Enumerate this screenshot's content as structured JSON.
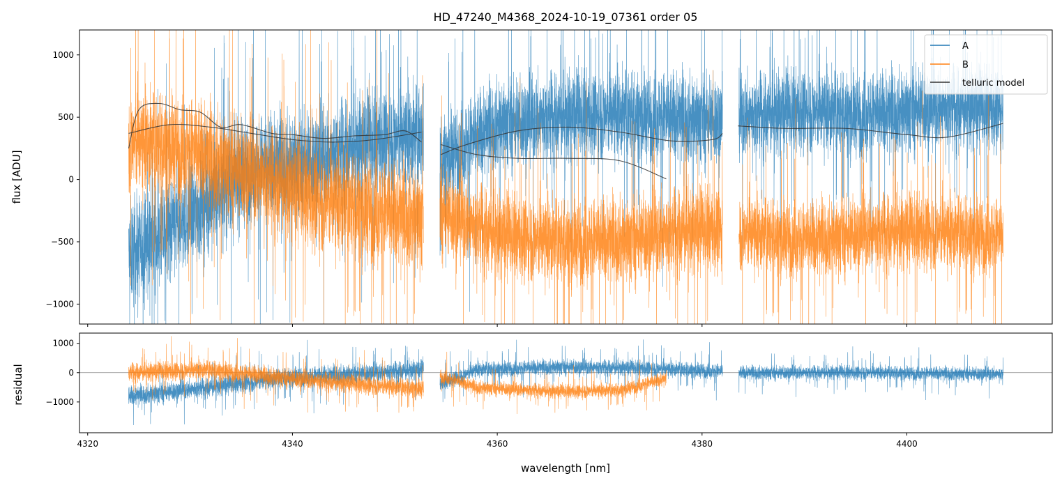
{
  "colors": {
    "A": "#1f77b4",
    "B": "#ff7f0e",
    "telluric": "#333333",
    "frame": "#000000",
    "zero_line": "#888888",
    "legend_border": "#cccccc"
  },
  "chart_data": [
    {
      "panel": "main",
      "type": "line",
      "title": "HD_47240_M4368_2024-10-19_07361  order 05",
      "xlabel": "",
      "ylabel": "flux [ADU]",
      "xlim": [
        4319.2,
        4414.2
      ],
      "ylim": [
        -1160,
        1200
      ],
      "xticks": [
        4320,
        4340,
        4360,
        4380,
        4400
      ],
      "yticks": [
        -1000,
        -500,
        0,
        500,
        1000
      ],
      "ytick_labels": [
        "−1000",
        "−500",
        "0",
        "500",
        "1000"
      ],
      "grid": false,
      "legend": {
        "position": "top-right",
        "entries": [
          "A",
          "B",
          "telluric model"
        ]
      },
      "series": [
        {
          "name": "A",
          "style": "noisy spectrum",
          "segments": [
            {
              "x_range": [
                4324.0,
                4352.8
              ],
              "center": [
                [
                  4324,
                  -600
                ],
                [
                  4330,
                  -300
                ],
                [
                  4336,
                  100
                ],
                [
                  4342,
                  150
                ],
                [
                  4348,
                  300
                ],
                [
                  4352.8,
                  350
                ]
              ],
              "spread": 520
            },
            {
              "x_range": [
                4354.4,
                4382.0
              ],
              "center": [
                [
                  4354.4,
                  150
                ],
                [
                  4360,
                  450
                ],
                [
                  4366,
                  500
                ],
                [
                  4372,
                  520
                ],
                [
                  4378,
                  500
                ],
                [
                  4382,
                  480
                ]
              ],
              "spread": 450
            },
            {
              "x_range": [
                4383.6,
                4409.4
              ],
              "center": [
                [
                  4383.6,
                  500
                ],
                [
                  4390,
                  550
                ],
                [
                  4396,
                  520
                ],
                [
                  4402,
                  580
                ],
                [
                  4409.4,
                  560
                ]
              ],
              "spread": 420
            }
          ]
        },
        {
          "name": "B",
          "style": "noisy spectrum",
          "segments": [
            {
              "x_range": [
                4324.0,
                4352.8
              ],
              "center": [
                [
                  4324,
                  300
                ],
                [
                  4330,
                  250
                ],
                [
                  4336,
                  50
                ],
                [
                  4342,
                  -150
                ],
                [
                  4348,
                  -250
                ],
                [
                  4352.8,
                  -300
                ]
              ],
              "spread": 520
            },
            {
              "x_range": [
                4354.4,
                4382.0
              ],
              "center": [
                [
                  4354.4,
                  -250
                ],
                [
                  4360,
                  -450
                ],
                [
                  4366,
                  -500
                ],
                [
                  4372,
                  -480
                ],
                [
                  4378,
                  -420
                ],
                [
                  4382,
                  -400
                ]
              ],
              "spread": 430
            },
            {
              "x_range": [
                4383.6,
                4409.4
              ],
              "center": [
                [
                  4383.6,
                  -430
                ],
                [
                  4390,
                  -480
                ],
                [
                  4396,
                  -430
                ],
                [
                  4402,
                  -420
                ],
                [
                  4409.4,
                  -450
                ]
              ],
              "spread": 380
            }
          ]
        },
        {
          "name": "telluric model",
          "style": "smooth lines",
          "curves": [
            {
              "points": [
                [
                  4324.0,
                  370
                ],
                [
                  4328.0,
                  440
                ],
                [
                  4332.0,
                  420
                ],
                [
                  4336.0,
                  370
                ],
                [
                  4340.0,
                  320
                ],
                [
                  4344.0,
                  300
                ],
                [
                  4348.0,
                  320
                ],
                [
                  4352.6,
                  380
                ]
              ]
            },
            {
              "points": [
                [
                  4324.0,
                  250
                ],
                [
                  4325.0,
                  560
                ],
                [
                  4327.0,
                  610
                ],
                [
                  4329.0,
                  560
                ],
                [
                  4331.0,
                  540
                ],
                [
                  4333.0,
                  420
                ],
                [
                  4335.0,
                  440
                ],
                [
                  4338.0,
                  370
                ],
                [
                  4340.0,
                  360
                ],
                [
                  4343.0,
                  330
                ],
                [
                  4346.0,
                  350
                ],
                [
                  4349.0,
                  360
                ],
                [
                  4351.0,
                  390
                ],
                [
                  4352.6,
                  300
                ]
              ]
            },
            {
              "points": [
                [
                  4354.5,
                  200
                ],
                [
                  4357.0,
                  280
                ],
                [
                  4362.0,
                  390
                ],
                [
                  4367.0,
                  420
                ],
                [
                  4372.0,
                  380
                ],
                [
                  4377.0,
                  310
                ],
                [
                  4381.0,
                  320
                ],
                [
                  4382.0,
                  370
                ]
              ]
            },
            {
              "points": [
                [
                  4354.5,
                  280
                ],
                [
                  4358.0,
                  200
                ],
                [
                  4362.0,
                  170
                ],
                [
                  4367.0,
                  170
                ],
                [
                  4372.0,
                  150
                ],
                [
                  4376.5,
                  5
                ]
              ]
            },
            {
              "points": [
                [
                  4383.5,
                  430
                ],
                [
                  4388.0,
                  410
                ],
                [
                  4394.0,
                  410
                ],
                [
                  4400.0,
                  360
                ],
                [
                  4404.0,
                  340
                ],
                [
                  4409.4,
                  450
                ]
              ]
            }
          ]
        }
      ]
    },
    {
      "panel": "residual",
      "type": "line",
      "title": "",
      "xlabel": "wavelength [nm]",
      "ylabel": "residual",
      "xlim": [
        4319.2,
        4414.2
      ],
      "ylim": [
        -2050,
        1350
      ],
      "xticks": [
        4320,
        4340,
        4360,
        4380,
        4400
      ],
      "xtick_labels": [
        "4320",
        "4340",
        "4360",
        "4380",
        "4400"
      ],
      "yticks": [
        -1000,
        0,
        1000
      ],
      "ytick_labels": [
        "−1000",
        "0",
        "1000"
      ],
      "zero_line": 0,
      "grid": false,
      "series": [
        {
          "name": "A",
          "segments": [
            {
              "x_range": [
                4324.0,
                4352.8
              ],
              "center": [
                [
                  4324,
                  -800
                ],
                [
                  4332,
                  -500
                ],
                [
                  4340,
                  -150
                ],
                [
                  4348,
                  0
                ],
                [
                  4352.8,
                  100
                ]
              ],
              "spread": 420
            },
            {
              "x_range": [
                4354.4,
                4382.0
              ],
              "center": [
                [
                  4354.4,
                  -400
                ],
                [
                  4358,
                  100
                ],
                [
                  4366,
                  200
                ],
                [
                  4374,
                  150
                ],
                [
                  4382,
                  50
                ]
              ],
              "spread": 330
            },
            {
              "x_range": [
                4383.6,
                4409.4
              ],
              "center": [
                [
                  4383.6,
                  0
                ],
                [
                  4396,
                  0
                ],
                [
                  4409.4,
                  -50
                ]
              ],
              "spread": 300
            }
          ]
        },
        {
          "name": "B",
          "segments": [
            {
              "x_range": [
                4324.0,
                4352.8
              ],
              "center": [
                [
                  4324,
                  0
                ],
                [
                  4332,
                  100
                ],
                [
                  4340,
                  -200
                ],
                [
                  4348,
                  -450
                ],
                [
                  4352.8,
                  -550
                ]
              ],
              "spread": 400
            },
            {
              "x_range": [
                4354.4,
                4376.5
              ],
              "center": [
                [
                  4354.4,
                  -100
                ],
                [
                  4358,
                  -500
                ],
                [
                  4366,
                  -650
                ],
                [
                  4372,
                  -600
                ],
                [
                  4376.5,
                  -200
                ]
              ],
              "spread": 300
            }
          ]
        }
      ]
    }
  ]
}
